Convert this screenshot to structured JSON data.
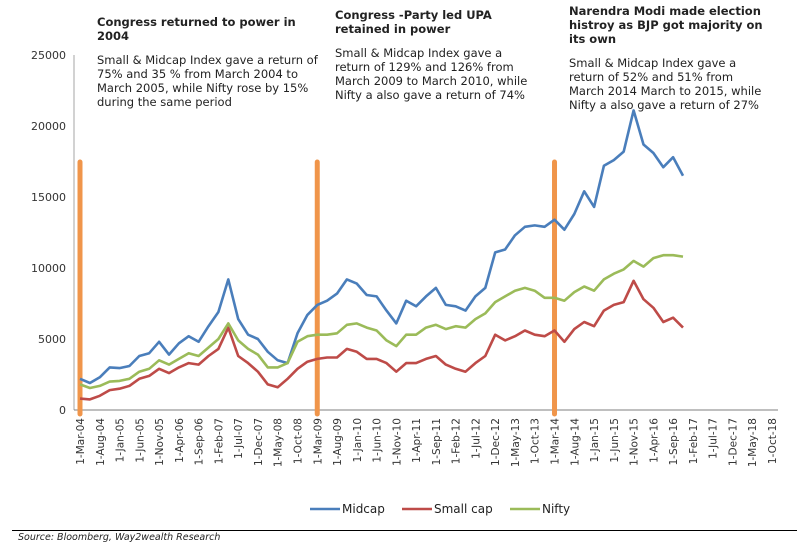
{
  "chart_data": {
    "type": "line",
    "title": "",
    "xlabel": "",
    "ylabel": "",
    "ylim": [
      0,
      25000
    ],
    "yticks": [
      "0",
      "5000",
      "10000",
      "15000",
      "20000",
      "25000"
    ],
    "ytick_values": [
      0,
      5000,
      10000,
      15000,
      20000,
      25000
    ],
    "grid": false,
    "legend_position": "bottom",
    "x_tick_labels": [
      "1-Mar-04",
      "1-Aug-04",
      "1-Jan-05",
      "1-Jun-05",
      "1-Nov-05",
      "1-Apr-06",
      "1-Sep-06",
      "1-Feb-07",
      "1-Jul-07",
      "1-Dec-07",
      "1-May-08",
      "1-Oct-08",
      "1-Mar-09",
      "1-Aug-09",
      "1-Jan-10",
      "1-Jun-10",
      "1-Nov-10",
      "1-Apr-11",
      "1-Sep-11",
      "1-Feb-12",
      "1-Jul-12",
      "1-Dec-12",
      "1-May-13",
      "1-Oct-13",
      "1-Mar-14",
      "1-Aug-14",
      "1-Jan-15",
      "1-Jun-15",
      "1-Nov-15",
      "1-Apr-16",
      "1-Sep-16",
      "1-Feb-17",
      "1-Jul-17",
      "1-Dec-17",
      "1-May-18",
      "1-Oct-18"
    ],
    "x_points_per_tick": 2,
    "series": [
      {
        "name": "Midcap",
        "color": "#4a7ebb",
        "values": [
          2200,
          1900,
          2300,
          3000,
          2950,
          3100,
          3800,
          4000,
          4800,
          3900,
          4700,
          5200,
          4800,
          5900,
          6900,
          9200,
          6400,
          5300,
          5000,
          4100,
          3500,
          3300,
          5400,
          6700,
          7400,
          7700,
          8200,
          9200,
          8900,
          8100,
          8000,
          7000,
          6100,
          7700,
          7300,
          8000,
          8600,
          7400,
          7300,
          7000,
          8000,
          8600,
          11100,
          11300,
          12300,
          12900,
          13000,
          12900,
          13400,
          12700,
          13800,
          15400,
          14300,
          17200,
          17600,
          18200,
          21100,
          18700,
          18100,
          17100,
          17800,
          16500
        ]
      },
      {
        "name": "Small cap",
        "color": "#be4b48",
        "values": [
          800,
          750,
          1000,
          1400,
          1500,
          1700,
          2200,
          2400,
          2900,
          2600,
          3000,
          3300,
          3200,
          3800,
          4300,
          5800,
          3800,
          3300,
          2700,
          1800,
          1600,
          2200,
          2900,
          3400,
          3600,
          3700,
          3700,
          4300,
          4100,
          3600,
          3600,
          3300,
          2700,
          3300,
          3300,
          3600,
          3800,
          3200,
          2900,
          2700,
          3300,
          3800,
          5300,
          4900,
          5200,
          5600,
          5300,
          5200,
          5600,
          4800,
          5700,
          6200,
          5900,
          7000,
          7400,
          7600,
          9100,
          7800,
          7200,
          6200,
          6500,
          5800
        ]
      },
      {
        "name": "Nifty",
        "color": "#9bbb59",
        "values": [
          1800,
          1550,
          1700,
          2000,
          2050,
          2200,
          2700,
          2900,
          3500,
          3200,
          3600,
          4000,
          3800,
          4400,
          5000,
          6100,
          4900,
          4300,
          3900,
          3000,
          3000,
          3300,
          4800,
          5200,
          5300,
          5300,
          5400,
          6000,
          6100,
          5800,
          5600,
          4900,
          4500,
          5300,
          5300,
          5800,
          6000,
          5700,
          5900,
          5800,
          6400,
          6800,
          7600,
          8000,
          8400,
          8600,
          8400,
          7900,
          7900,
          7700,
          8300,
          8700,
          8400,
          9200,
          9600,
          9900,
          10500,
          10100,
          10700,
          10900,
          10900,
          10800
        ]
      }
    ],
    "markers": [
      {
        "label": "1-Mar-04",
        "color": "#f0954a"
      },
      {
        "label": "1-Mar-09",
        "color": "#f0954a"
      },
      {
        "label": "1-Mar-14",
        "color": "#f0954a"
      }
    ],
    "annotations": [
      {
        "heading": "Congress returned  to power in 2004",
        "body": "Small  & Midcap Index  gave a return of  75% and 35 % from March 2004 to March 2005, while Nifty rose by 15% during the same period"
      },
      {
        "heading": "Congress -Party led UPA retained in power",
        "body": "Small  & Midcap Index  gave a return of  129% and 126% from March 2009 to March 2010, while Nifty  a also gave a return of 74%"
      },
      {
        "heading": "Narendra Modi made election histroy as BJP got majority on its own",
        "body": "Small  & Midcap Index  gave a return of  52% and 51% from March 2014 March to 2015, while Nifty a also gave a return of 27%"
      }
    ],
    "legend": [
      "Midcap",
      "Small cap",
      "Nifty"
    ]
  },
  "source": "Source: Bloomberg, Way2wealth Research"
}
